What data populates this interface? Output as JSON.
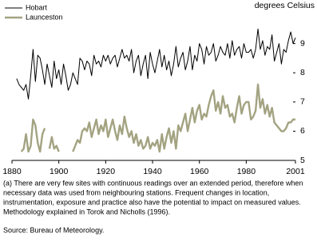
{
  "chart_data": {
    "type": "line",
    "y_axis_label": "degrees Celsius",
    "x": [
      1882,
      1883,
      1884,
      1885,
      1886,
      1887,
      1888,
      1889,
      1890,
      1891,
      1892,
      1893,
      1894,
      1895,
      1896,
      1897,
      1898,
      1899,
      1900,
      1901,
      1902,
      1903,
      1904,
      1905,
      1906,
      1907,
      1908,
      1909,
      1910,
      1911,
      1912,
      1913,
      1914,
      1915,
      1916,
      1917,
      1918,
      1919,
      1920,
      1921,
      1922,
      1923,
      1924,
      1925,
      1926,
      1927,
      1928,
      1929,
      1930,
      1931,
      1932,
      1933,
      1934,
      1935,
      1936,
      1937,
      1938,
      1939,
      1940,
      1941,
      1942,
      1943,
      1944,
      1945,
      1946,
      1947,
      1948,
      1949,
      1950,
      1951,
      1952,
      1953,
      1954,
      1955,
      1956,
      1957,
      1958,
      1959,
      1960,
      1961,
      1962,
      1963,
      1964,
      1965,
      1966,
      1967,
      1968,
      1969,
      1970,
      1971,
      1972,
      1973,
      1974,
      1975,
      1976,
      1977,
      1978,
      1979,
      1980,
      1981,
      1982,
      1983,
      1984,
      1985,
      1986,
      1987,
      1988,
      1989,
      1990,
      1991,
      1992,
      1993,
      1994,
      1995,
      1996,
      1997,
      1998,
      1999,
      2000,
      2001
    ],
    "series": [
      {
        "name": "Hobart",
        "color": "#000000",
        "values": [
          7.8,
          7.6,
          7.5,
          7.4,
          7.6,
          7.1,
          7.9,
          8.8,
          7.7,
          8.6,
          8.5,
          8.1,
          7.6,
          8.3,
          7.9,
          7.5,
          8.4,
          7.8,
          8.1,
          7.6,
          8.3,
          7.9,
          7.4,
          7.6,
          8.0,
          7.8,
          7.6,
          8.5,
          8.4,
          8.1,
          8.4,
          8.3,
          7.9,
          8.6,
          8.3,
          8.4,
          8.2,
          8.6,
          8.4,
          8.6,
          8.3,
          8.5,
          8.6,
          8.2,
          8.5,
          8.8,
          8.5,
          8.6,
          8.4,
          8.8,
          8.0,
          8.4,
          8.6,
          7.9,
          8.3,
          8.6,
          7.8,
          8.7,
          8.3,
          8.0,
          8.4,
          8.8,
          8.2,
          8.6,
          8.1,
          8.4,
          7.9,
          8.3,
          8.9,
          8.2,
          8.5,
          8.7,
          8.1,
          8.4,
          8.9,
          8.1,
          8.6,
          8.4,
          9.0,
          8.8,
          8.3,
          8.9,
          8.6,
          8.7,
          9.0,
          8.4,
          8.6,
          8.9,
          8.7,
          8.6,
          9.0,
          8.5,
          9.1,
          8.6,
          8.8,
          8.9,
          8.5,
          9.0,
          8.7,
          8.7,
          8.8,
          8.5,
          8.8,
          9.5,
          8.8,
          9.1,
          8.6,
          8.9,
          8.8,
          9.3,
          8.4,
          8.7,
          9.0,
          8.3,
          8.8,
          8.7,
          9.1,
          9.4,
          9.0,
          9.2
        ]
      },
      {
        "name": "Launceston",
        "color": "#a3a382",
        "values": [
          null,
          null,
          5.3,
          5.4,
          5.9,
          5.3,
          5.5,
          6.4,
          6.2,
          5.6,
          5.3,
          5.9,
          6.1,
          null,
          5.4,
          5.8,
          5.4,
          5.5,
          5.3,
          null,
          null,
          null,
          null,
          null,
          5.3,
          5.5,
          5.7,
          5.6,
          6.0,
          6.1,
          6.0,
          6.3,
          5.8,
          6.1,
          6.4,
          5.9,
          6.2,
          6.0,
          6.4,
          5.8,
          6.1,
          6.4,
          6.0,
          5.7,
          6.2,
          5.9,
          6.5,
          6.1,
          5.8,
          6.0,
          5.6,
          5.9,
          5.5,
          5.7,
          5.4,
          5.5,
          5.8,
          5.4,
          5.6,
          5.5,
          5.7,
          5.3,
          5.9,
          5.4,
          5.8,
          6.1,
          5.6,
          6.0,
          5.4,
          6.2,
          6.0,
          6.3,
          6.6,
          6.0,
          6.4,
          6.8,
          6.3,
          6.7,
          6.9,
          6.4,
          6.6,
          6.5,
          6.9,
          7.2,
          7.4,
          6.7,
          7.0,
          6.6,
          7.2,
          6.8,
          6.9,
          6.5,
          6.6,
          6.3,
          6.8,
          7.2,
          6.6,
          6.9,
          7.0,
          7.0,
          6.4,
          6.5,
          6.7,
          7.6,
          6.8,
          7.1,
          6.6,
          6.9,
          6.5,
          6.8,
          6.3,
          6.2,
          6.1,
          6.0,
          6.0,
          6.1,
          6.3,
          6.3,
          6.4,
          6.4
        ]
      }
    ],
    "xlim": [
      1880,
      2001
    ],
    "xticks": [
      1880,
      1900,
      1920,
      1940,
      1960,
      1980,
      2001
    ],
    "ylim": [
      5,
      10
    ],
    "yticks": [
      5,
      6,
      7,
      8,
      9
    ],
    "legend": "top-left",
    "footnote": [
      "(a) There are very few sites with continuous readings over an extended period, therefore when",
      "necessary data was used from neighbouring stations. Frequent changes in location,",
      "instrumentation, exposure and practice also have the potential to impact on measured values.",
      "Methodology explained in Torok and Nicholls (1996)."
    ],
    "source": "Source: Bureau of Meteorology."
  }
}
